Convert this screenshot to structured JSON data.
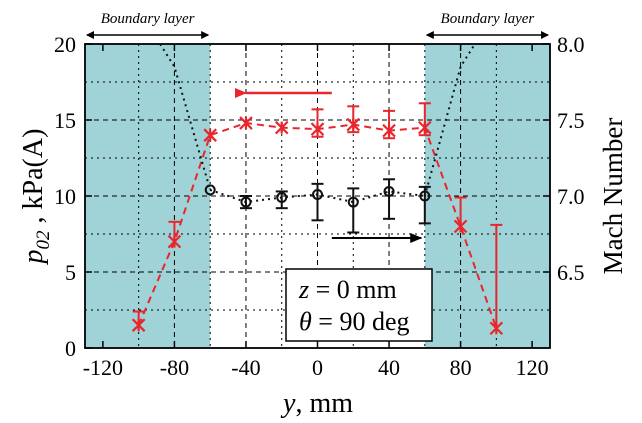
{
  "chart_data": {
    "type": "scatter",
    "title": "",
    "xlabel": {
      "var": "y",
      "unit": ", mm"
    },
    "ylabel_left": {
      "var": "p",
      "sub": "02",
      "unit": " , kPa(A)"
    },
    "ylabel_right": "Mach Number",
    "xlim": [
      -130,
      130
    ],
    "ylim_left": [
      0,
      20
    ],
    "ylim_right": [
      6.0,
      8.0
    ],
    "x_ticks": [
      -120,
      -80,
      -40,
      0,
      40,
      80,
      120
    ],
    "x_tick_labels": [
      "-120",
      "-80",
      "-40",
      "0",
      "40",
      "80",
      "120"
    ],
    "y_left_ticks": [
      0,
      5,
      10,
      15,
      20
    ],
    "y_left_tick_labels": [
      "0",
      "5",
      "10",
      "15",
      "20"
    ],
    "y_right_ticks": [
      6.5,
      7.0,
      7.5,
      8.0
    ],
    "y_right_tick_labels": [
      "6.5",
      "7.0",
      "7.5",
      "8.0"
    ],
    "grid": true,
    "boundary_layer_label": "Boundary layer",
    "boundary_layers": [
      [
        -130,
        -60
      ],
      [
        60,
        130
      ]
    ],
    "shade_color": "#9fd3d8",
    "annotation": {
      "line1": {
        "var": "z",
        "rest": " = 0 mm"
      },
      "line2": {
        "var": "θ",
        "rest": " = 90 deg"
      }
    },
    "series": [
      {
        "axis": "left",
        "color": "#e8262b",
        "marker": "x",
        "line": "dashed",
        "x": [
          -100,
          -80,
          -60,
          -40,
          -20,
          0,
          20,
          40,
          60,
          80,
          100
        ],
        "y": [
          1.5,
          7.0,
          14.0,
          14.8,
          14.5,
          14.4,
          14.7,
          14.3,
          14.5,
          8.0,
          1.3
        ],
        "err_up": [
          0.9,
          1.3,
          0,
          0,
          0,
          1.3,
          1.2,
          1.3,
          1.6,
          1.9,
          6.8
        ],
        "err_down": [
          0,
          0,
          0,
          0,
          0,
          0.5,
          0.5,
          0.5,
          0.5,
          0,
          0
        ]
      },
      {
        "axis": "right",
        "color": "#111111",
        "marker": "o",
        "line": "dotted",
        "x": [
          -60,
          -40,
          -20,
          0,
          20,
          40,
          60
        ],
        "y": [
          7.04,
          6.96,
          6.99,
          7.01,
          6.96,
          7.03,
          7.0
        ],
        "err_up": [
          0,
          0.04,
          0.04,
          0.07,
          0.09,
          0.08,
          0.06
        ],
        "err_down": [
          0,
          0.04,
          0.07,
          0.17,
          0.2,
          0.18,
          0.18
        ]
      },
      {
        "axis": "right",
        "color": "#111111",
        "marker": "none",
        "line": "dotted",
        "x": [
          -88,
          -80,
          -60
        ],
        "y": [
          8.0,
          7.85,
          7.04
        ]
      },
      {
        "axis": "right",
        "color": "#111111",
        "marker": "none",
        "line": "dotted",
        "x": [
          60,
          80,
          88
        ],
        "y": [
          7.0,
          7.85,
          8.0
        ]
      }
    ]
  }
}
